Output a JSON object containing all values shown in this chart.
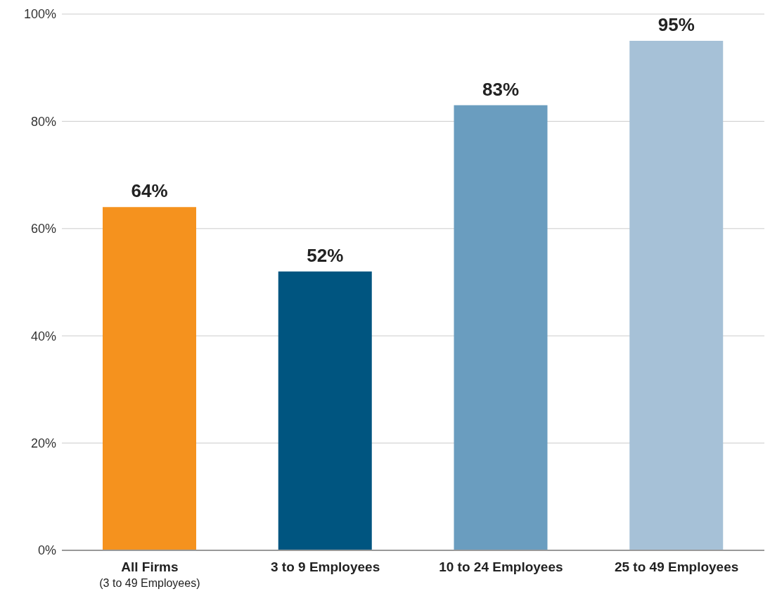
{
  "chart_data": {
    "type": "bar",
    "categories": [
      "All Firms\n(3 to 49 Employees)",
      "3 to 9 Employees",
      "10 to 24 Employees",
      "25 to 49 Employees"
    ],
    "values": [
      64,
      52,
      83,
      95
    ],
    "colors": [
      "#f5921e",
      "#005580",
      "#6a9dbf",
      "#a6c1d7"
    ],
    "value_labels": [
      "64%",
      "52%",
      "83%",
      "95%"
    ],
    "ylim": [
      0,
      100
    ],
    "yticks": [
      {
        "value": 0,
        "label": "0%"
      },
      {
        "value": 20,
        "label": "20%"
      },
      {
        "value": 40,
        "label": "40%"
      },
      {
        "value": 60,
        "label": "60%"
      },
      {
        "value": 80,
        "label": "80%"
      },
      {
        "value": 100,
        "label": "100%"
      }
    ],
    "grid": "y"
  }
}
